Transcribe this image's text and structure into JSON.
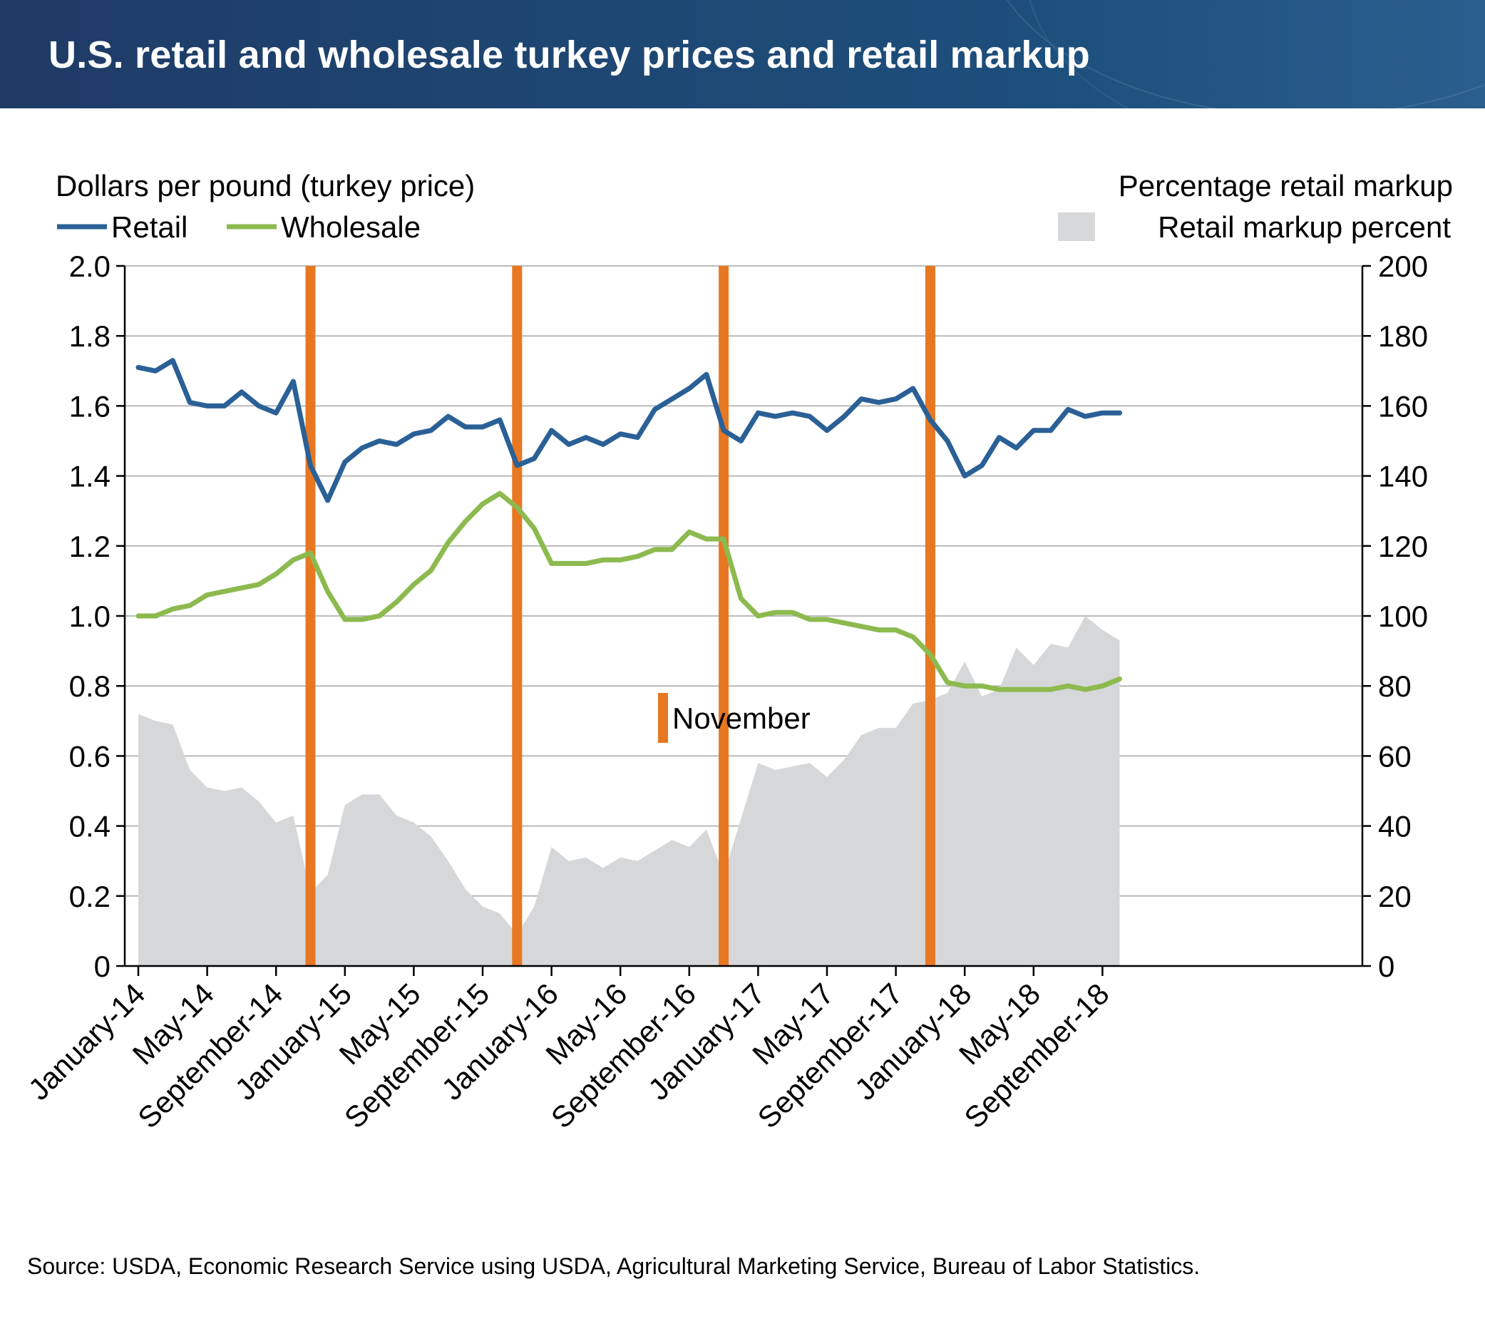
{
  "title": "U.S. retail and wholesale turkey prices and retail markup",
  "source": "Source: USDA, Economic Research Service using USDA, Agricultural Marketing Service, Bureau of Labor Statistics.",
  "chart_data": {
    "type": "line",
    "left_axis_title": "Dollars per pound (turkey price)",
    "right_axis_title": "Percentage retail markup",
    "ylim_left": [
      0,
      2.0
    ],
    "yticks_left": [
      "0",
      "0.2",
      "0.4",
      "0.6",
      "0.8",
      "1.0",
      "1.2",
      "1.4",
      "1.6",
      "1.8",
      "2.0"
    ],
    "ylim_right": [
      0,
      200
    ],
    "yticks_right": [
      "0",
      "20",
      "40",
      "60",
      "80",
      "100",
      "120",
      "140",
      "160",
      "180",
      "200"
    ],
    "x_tick_labels": [
      "January-14",
      "May-14",
      "September-14",
      "January-15",
      "May-15",
      "September-15",
      "January-16",
      "May-16",
      "September-16",
      "January-17",
      "May-17",
      "September-17",
      "January-18",
      "May-18",
      "September-18"
    ],
    "x_months": [
      "Jan-14",
      "Feb-14",
      "Mar-14",
      "Apr-14",
      "May-14",
      "Jun-14",
      "Jul-14",
      "Aug-14",
      "Sep-14",
      "Oct-14",
      "Nov-14",
      "Dec-14",
      "Jan-15",
      "Feb-15",
      "Mar-15",
      "Apr-15",
      "May-15",
      "Jun-15",
      "Jul-15",
      "Aug-15",
      "Sep-15",
      "Oct-15",
      "Nov-15",
      "Dec-15",
      "Jan-16",
      "Feb-16",
      "Mar-16",
      "Apr-16",
      "May-16",
      "Jun-16",
      "Jul-16",
      "Aug-16",
      "Sep-16",
      "Oct-16",
      "Nov-16",
      "Dec-16",
      "Jan-17",
      "Feb-17",
      "Mar-17",
      "Apr-17",
      "May-17",
      "Jun-17",
      "Jul-17",
      "Aug-17",
      "Sep-17",
      "Oct-17",
      "Nov-17",
      "Dec-17",
      "Jan-18",
      "Feb-18",
      "Mar-18",
      "Apr-18",
      "May-18",
      "Jun-18",
      "Jul-18",
      "Aug-18",
      "Sep-18",
      "Oct-18"
    ],
    "november_label": "November",
    "november_months": [
      "Nov-14",
      "Nov-15",
      "Nov-16",
      "Nov-17"
    ],
    "series": [
      {
        "name": "Retail",
        "color": "#2a6096",
        "axis": "left",
        "values": [
          1.71,
          1.7,
          1.73,
          1.61,
          1.6,
          1.6,
          1.64,
          1.6,
          1.58,
          1.67,
          1.43,
          1.33,
          1.44,
          1.48,
          1.5,
          1.49,
          1.52,
          1.53,
          1.57,
          1.54,
          1.54,
          1.56,
          1.43,
          1.45,
          1.53,
          1.49,
          1.51,
          1.49,
          1.52,
          1.51,
          1.59,
          1.62,
          1.65,
          1.69,
          1.53,
          1.5,
          1.58,
          1.57,
          1.58,
          1.57,
          1.53,
          1.57,
          1.62,
          1.61,
          1.62,
          1.65,
          1.56,
          1.5,
          1.4,
          1.43,
          1.51,
          1.48,
          1.53,
          1.53,
          1.59,
          1.57,
          1.58,
          1.58
        ]
      },
      {
        "name": "Wholesale",
        "color": "#8cba4f",
        "axis": "left",
        "values": [
          1.0,
          1.0,
          1.02,
          1.03,
          1.06,
          1.07,
          1.08,
          1.09,
          1.12,
          1.16,
          1.18,
          1.07,
          0.99,
          0.99,
          1.0,
          1.04,
          1.09,
          1.13,
          1.21,
          1.27,
          1.32,
          1.35,
          1.31,
          1.25,
          1.15,
          1.15,
          1.15,
          1.16,
          1.16,
          1.17,
          1.19,
          1.19,
          1.24,
          1.22,
          1.22,
          1.05,
          1.0,
          1.01,
          1.01,
          0.99,
          0.99,
          0.98,
          0.97,
          0.96,
          0.96,
          0.94,
          0.89,
          0.81,
          0.8,
          0.8,
          0.79,
          0.79,
          0.79,
          0.79,
          0.8,
          0.79,
          0.8,
          0.82
        ]
      },
      {
        "name": "Retail markup percent",
        "color": "#d6d7d9",
        "type": "area",
        "axis": "right",
        "values": [
          72,
          70,
          69,
          56,
          51,
          50,
          51,
          47,
          41,
          43,
          21,
          26,
          46,
          49,
          49,
          43,
          41,
          37,
          30,
          22,
          17,
          15,
          9,
          17,
          34,
          30,
          31,
          28,
          31,
          30,
          33,
          36,
          34,
          39,
          26,
          42,
          58,
          56,
          57,
          58,
          54,
          59,
          66,
          68,
          68,
          75,
          76,
          78,
          87,
          77,
          79,
          91,
          86,
          92,
          91,
          100,
          96,
          93
        ]
      }
    ],
    "colors": {
      "november_bar": "#e87722",
      "axis": "#000000",
      "gridline": "#a6a6a6"
    }
  }
}
